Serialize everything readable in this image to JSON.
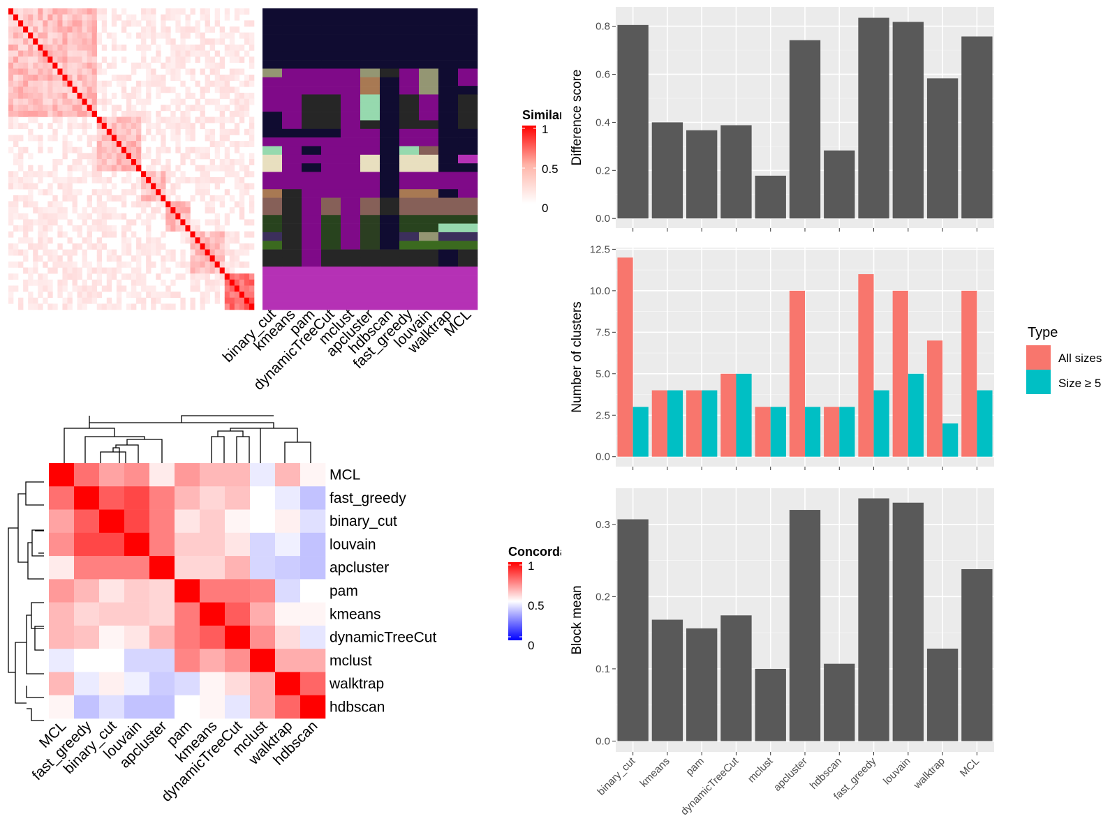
{
  "chart_data": [
    {
      "type": "heatmap",
      "panel": "similarity",
      "legend": {
        "title": "Similarity",
        "ticks": [
          "1",
          "0.5",
          "0"
        ],
        "low_color": "#ffffff",
        "high_color": "#ff0000"
      },
      "n_items": 50,
      "methods": [
        "binary_cut",
        "kmeans",
        "pam",
        "dynamicTreeCut",
        "mclust",
        "apcluster",
        "hdbscan",
        "fast_greedy",
        "louvain",
        "walktrap",
        "MCL"
      ],
      "class_colors": [
        "#100c31",
        "#7f0a88",
        "#262626",
        "#949673",
        "#a87953",
        "#96d9ae",
        "#e8dfbf",
        "#866058",
        "#28431e",
        "#2b3e21",
        "#3c2f5c",
        "#b531b5",
        "#3b6a1f"
      ],
      "membership_rows": [
        [
          0,
          0,
          0,
          0,
          0,
          0,
          0,
          0,
          0,
          0,
          0
        ],
        [
          0,
          0,
          0,
          0,
          0,
          0,
          0,
          0,
          0,
          0,
          0
        ],
        [
          0,
          0,
          0,
          0,
          0,
          0,
          0,
          0,
          0,
          0,
          0
        ],
        [
          0,
          0,
          0,
          0,
          0,
          0,
          0,
          0,
          0,
          0,
          0
        ],
        [
          0,
          0,
          0,
          0,
          0,
          0,
          0,
          0,
          0,
          0,
          0
        ],
        [
          0,
          0,
          0,
          0,
          0,
          0,
          0,
          0,
          0,
          0,
          0
        ],
        [
          0,
          0,
          0,
          0,
          0,
          0,
          0,
          0,
          0,
          0,
          0
        ],
        [
          3,
          1,
          1,
          1,
          1,
          3,
          2,
          1,
          3,
          0,
          1
        ],
        [
          1,
          1,
          1,
          1,
          1,
          4,
          0,
          1,
          3,
          0,
          1
        ],
        [
          1,
          1,
          1,
          1,
          1,
          4,
          0,
          1,
          3,
          0,
          0
        ],
        [
          1,
          1,
          2,
          2,
          1,
          5,
          0,
          2,
          1,
          0,
          2
        ],
        [
          1,
          1,
          2,
          2,
          1,
          5,
          0,
          2,
          1,
          0,
          2
        ],
        [
          0,
          1,
          2,
          2,
          1,
          5,
          0,
          2,
          1,
          0,
          2
        ],
        [
          0,
          1,
          2,
          2,
          1,
          2,
          0,
          2,
          2,
          0,
          2
        ],
        [
          0,
          0,
          0,
          0,
          1,
          1,
          0,
          1,
          1,
          0,
          0
        ],
        [
          1,
          1,
          1,
          1,
          1,
          1,
          0,
          1,
          1,
          0,
          0
        ],
        [
          5,
          1,
          0,
          1,
          1,
          1,
          0,
          5,
          7,
          0,
          0
        ],
        [
          6,
          1,
          1,
          1,
          1,
          6,
          0,
          6,
          6,
          0,
          11
        ],
        [
          6,
          1,
          0,
          1,
          1,
          6,
          0,
          6,
          6,
          0,
          0
        ],
        [
          1,
          1,
          1,
          1,
          1,
          1,
          0,
          1,
          1,
          1,
          1
        ],
        [
          1,
          1,
          1,
          1,
          1,
          1,
          0,
          1,
          1,
          1,
          1
        ],
        [
          4,
          2,
          1,
          1,
          1,
          1,
          0,
          4,
          4,
          0,
          1
        ],
        [
          7,
          2,
          1,
          7,
          1,
          7,
          2,
          7,
          7,
          7,
          7
        ],
        [
          7,
          2,
          1,
          7,
          1,
          7,
          2,
          7,
          7,
          7,
          7
        ],
        [
          8,
          2,
          1,
          8,
          1,
          9,
          0,
          8,
          8,
          8,
          8
        ],
        [
          8,
          2,
          1,
          8,
          1,
          9,
          0,
          8,
          8,
          5,
          5
        ],
        [
          10,
          2,
          1,
          8,
          1,
          9,
          0,
          10,
          3,
          10,
          10
        ],
        [
          12,
          2,
          1,
          8,
          1,
          9,
          0,
          12,
          12,
          12,
          12
        ],
        [
          2,
          2,
          1,
          2,
          2,
          2,
          2,
          2,
          2,
          0,
          2
        ],
        [
          2,
          2,
          1,
          2,
          2,
          2,
          2,
          2,
          2,
          0,
          2
        ],
        [
          11,
          11,
          11,
          11,
          11,
          11,
          11,
          11,
          11,
          11,
          11
        ],
        [
          11,
          11,
          11,
          11,
          11,
          11,
          11,
          11,
          11,
          11,
          11
        ],
        [
          11,
          11,
          11,
          11,
          11,
          11,
          11,
          11,
          11,
          11,
          11
        ],
        [
          11,
          11,
          11,
          11,
          11,
          11,
          11,
          11,
          11,
          11,
          11
        ],
        [
          11,
          11,
          11,
          11,
          11,
          11,
          11,
          11,
          11,
          11,
          11
        ]
      ]
    },
    {
      "type": "heatmap",
      "panel": "concordance",
      "legend": {
        "title": "Concordance",
        "ticks": [
          "1",
          "0.5",
          "0"
        ],
        "low_color": "#0000ff",
        "mid_color": "#ffffff",
        "high_color": "#ff0000"
      },
      "rows": [
        "MCL",
        "fast_greedy",
        "binary_cut",
        "louvain",
        "apcluster",
        "pam",
        "kmeans",
        "dynamicTreeCut",
        "mclust",
        "walktrap",
        "hdbscan"
      ],
      "columns": [
        "MCL",
        "fast_greedy",
        "binary_cut",
        "louvain",
        "apcluster",
        "pam",
        "kmeans",
        "dynamicTreeCut",
        "mclust",
        "walktrap",
        "hdbscan"
      ],
      "values": [
        [
          1.0,
          0.78,
          0.68,
          0.72,
          0.54,
          0.7,
          0.64,
          0.64,
          0.46,
          0.64,
          0.52
        ],
        [
          0.78,
          1.0,
          0.82,
          0.86,
          0.75,
          0.64,
          0.58,
          0.62,
          0.5,
          0.46,
          0.38
        ],
        [
          0.68,
          0.82,
          1.0,
          0.86,
          0.75,
          0.55,
          0.6,
          0.52,
          0.5,
          0.53,
          0.44
        ],
        [
          0.72,
          0.86,
          0.86,
          1.0,
          0.75,
          0.6,
          0.6,
          0.55,
          0.42,
          0.47,
          0.38
        ],
        [
          0.54,
          0.75,
          0.75,
          0.75,
          1.0,
          0.58,
          0.58,
          0.65,
          0.42,
          0.4,
          0.38
        ],
        [
          0.7,
          0.64,
          0.55,
          0.6,
          0.58,
          1.0,
          0.76,
          0.76,
          0.74,
          0.43,
          0.5
        ],
        [
          0.64,
          0.58,
          0.6,
          0.6,
          0.58,
          0.76,
          1.0,
          0.82,
          0.66,
          0.52,
          0.52
        ],
        [
          0.64,
          0.62,
          0.52,
          0.55,
          0.65,
          0.76,
          0.82,
          1.0,
          0.72,
          0.57,
          0.45
        ],
        [
          0.46,
          0.5,
          0.5,
          0.42,
          0.42,
          0.74,
          0.66,
          0.72,
          1.0,
          0.66,
          0.66
        ],
        [
          0.64,
          0.46,
          0.53,
          0.47,
          0.4,
          0.43,
          0.52,
          0.57,
          0.66,
          1.0,
          0.8
        ],
        [
          0.52,
          0.38,
          0.44,
          0.38,
          0.38,
          0.5,
          0.52,
          0.45,
          0.66,
          0.8,
          1.0
        ]
      ]
    },
    {
      "type": "bar",
      "panel": "difference",
      "categories": [
        "binary_cut",
        "kmeans",
        "pam",
        "dynamicTreeCut",
        "mclust",
        "apcluster",
        "hdbscan",
        "fast_greedy",
        "louvain",
        "walktrap",
        "MCL"
      ],
      "values": [
        0.805,
        0.4,
        0.367,
        0.388,
        0.178,
        0.742,
        0.283,
        0.835,
        0.818,
        0.583,
        0.757
      ],
      "ylabel": "Difference score",
      "ylim": [
        -0.04,
        0.88
      ],
      "yticks": [
        "0.0",
        "0.2",
        "0.4",
        "0.6",
        "0.8"
      ],
      "color": "#595959"
    },
    {
      "type": "bar",
      "panel": "number",
      "categories": [
        "binary_cut",
        "kmeans",
        "pam",
        "dynamicTreeCut",
        "mclust",
        "apcluster",
        "hdbscan",
        "fast_greedy",
        "louvain",
        "walktrap",
        "MCL"
      ],
      "series": [
        {
          "name": "All sizes",
          "values": [
            12,
            4,
            4,
            5,
            3,
            10,
            3,
            11,
            10,
            7,
            10
          ],
          "color": "#f8766d"
        },
        {
          "name": "Size ≥ 5",
          "values": [
            3,
            4,
            4,
            5,
            3,
            3,
            3,
            4,
            5,
            2,
            4
          ],
          "color": "#00bfc4"
        }
      ],
      "ylabel": "Number of clusters",
      "ylim": [
        -0.6,
        12.6
      ],
      "yticks": [
        "0.0",
        "2.5",
        "5.0",
        "7.5",
        "10.0",
        "12.5"
      ],
      "legend": {
        "title": "Type",
        "position": "right"
      }
    },
    {
      "type": "bar",
      "panel": "block",
      "categories": [
        "binary_cut",
        "kmeans",
        "pam",
        "dynamicTreeCut",
        "mclust",
        "apcluster",
        "hdbscan",
        "fast_greedy",
        "louvain",
        "walktrap",
        "MCL"
      ],
      "values": [
        0.307,
        0.168,
        0.156,
        0.174,
        0.1,
        0.32,
        0.107,
        0.336,
        0.33,
        0.128,
        0.238
      ],
      "ylabel": "Block mean",
      "ylim": [
        -0.015,
        0.35
      ],
      "yticks": [
        "0.0",
        "0.1",
        "0.2",
        "0.3"
      ],
      "color": "#595959"
    }
  ]
}
